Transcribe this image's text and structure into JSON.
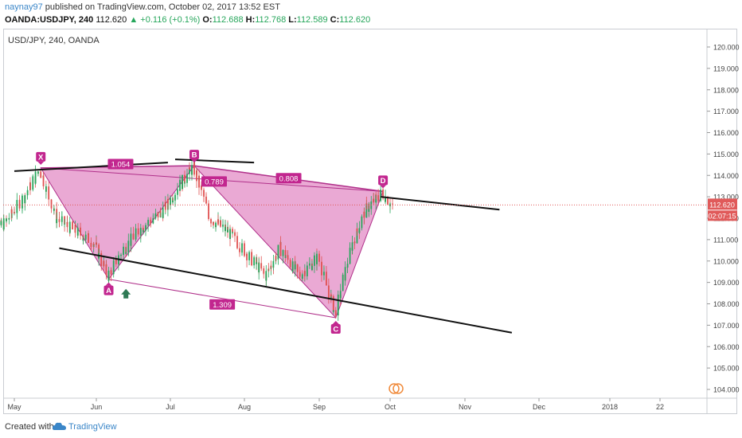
{
  "header": {
    "user": "naynay97",
    "published": " published on TradingView.com, October 02, 2017 13:52 EST",
    "symbol": "OANDA:USDJPY, 240",
    "last": "112.620",
    "change": "+0.116 (+0.1%)",
    "o_label": "O:",
    "o": "112.688",
    "h_label": "H:",
    "h": "112.768",
    "l_label": "L:",
    "l": "112.589",
    "c_label": "C:",
    "c": "112.620"
  },
  "chart_title": "USD/JPY, 240, OANDA",
  "footer": {
    "created": "Created with",
    "brand": "TradingView"
  },
  "colors": {
    "up": "#26a65b",
    "down": "#e05050",
    "pattern_fill": "#e38cc6",
    "pattern_stroke": "#b0308a",
    "label_bg": "#c2268f",
    "price_tag": "#e05a5a"
  },
  "chart_data": {
    "type": "candlestick",
    "ylim": [
      103.5,
      120.6
    ],
    "y_ticks": [
      "104.000",
      "105.000",
      "106.000",
      "107.000",
      "108.000",
      "109.000",
      "110.000",
      "111.000",
      "112.000",
      "113.000",
      "114.000",
      "115.000",
      "116.000",
      "117.000",
      "118.000",
      "119.000",
      "120.000"
    ],
    "x_ticks": [
      "May",
      "Jun",
      "Jul",
      "Aug",
      "Sep",
      "Oct",
      "Nov",
      "Dec",
      "2018",
      "22"
    ],
    "last_price_label": "112.620",
    "countdown_label": "02:07:15",
    "pattern_points": [
      {
        "label": "X",
        "date": "2017-05-11",
        "price": 114.35
      },
      {
        "label": "A",
        "date": "2017-06-06",
        "price": 109.15
      },
      {
        "label": "B",
        "date": "2017-07-11",
        "price": 114.45
      },
      {
        "label": "C",
        "date": "2017-09-08",
        "price": 107.35
      },
      {
        "label": "D",
        "date": "2017-09-28",
        "price": 113.25
      }
    ],
    "ratios": [
      "1.054",
      "0.789",
      "0.808",
      "1.309"
    ],
    "trendlines": [
      {
        "from": [
          "2017-05-01",
          114.2
        ],
        "to": [
          "2017-06-30",
          114.6
        ]
      },
      {
        "from": [
          "2017-07-03",
          114.75
        ],
        "to": [
          "2017-08-05",
          114.6
        ]
      },
      {
        "from": [
          "2017-05-18",
          110.6
        ],
        "to": [
          "2017-11-20",
          106.65
        ]
      },
      {
        "from": [
          "2017-09-27",
          113.0
        ],
        "to": [
          "2017-11-15",
          112.4
        ]
      }
    ]
  }
}
